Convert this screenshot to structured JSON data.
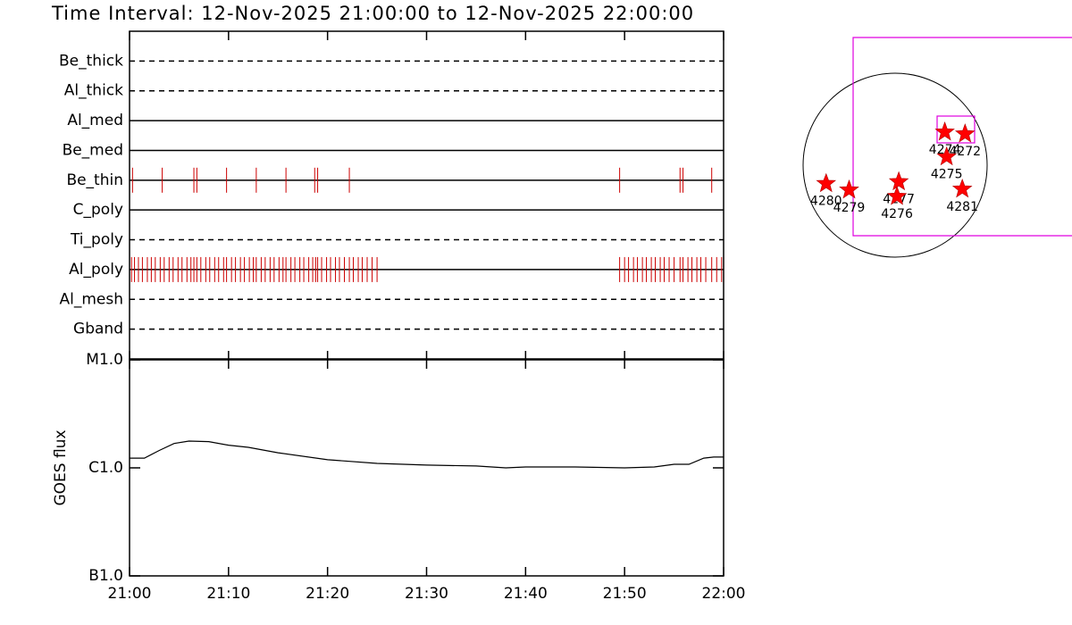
{
  "chart_data": [
    {
      "type": "timeline",
      "title": "Time Interval: 12-Nov-2025 21:00:00 to 12-Nov-2025 22:00:00",
      "categories": [
        "Be_thick",
        "Al_thick",
        "Al_med",
        "Be_med",
        "Be_thin",
        "C_poly",
        "Ti_poly",
        "Al_poly",
        "Al_mesh",
        "Gband"
      ],
      "line_styles": [
        "dashed",
        "dashed",
        "solid",
        "solid",
        "solid",
        "solid",
        "dashed",
        "solid",
        "dashed",
        "dashed"
      ],
      "events": [
        [],
        [],
        [],
        [],
        [
          0.3,
          3.3,
          6.5,
          6.8,
          9.8,
          12.8,
          15.8,
          18.7,
          19.0,
          22.2,
          49.5,
          55.6,
          55.9,
          58.8
        ],
        [],
        [],
        [
          0.2,
          0.5,
          0.9,
          1.3,
          1.8,
          2.2,
          2.6,
          3.1,
          3.5,
          4.0,
          4.4,
          4.9,
          5.3,
          5.8,
          6.2,
          6.5,
          6.8,
          7.2,
          7.7,
          8.1,
          8.6,
          9.0,
          9.5,
          9.8,
          10.3,
          10.7,
          11.2,
          11.6,
          12.1,
          12.5,
          12.8,
          13.3,
          13.7,
          14.2,
          14.6,
          15.1,
          15.5,
          15.8,
          16.3,
          16.7,
          17.2,
          17.6,
          18.1,
          18.5,
          18.8,
          19.0,
          19.4,
          19.9,
          20.3,
          20.8,
          21.2,
          21.7,
          22.2,
          22.6,
          23.1,
          23.5,
          24.0,
          24.5,
          25.0,
          49.5,
          50.0,
          50.4,
          50.9,
          51.3,
          51.8,
          52.2,
          52.7,
          53.1,
          53.6,
          54.0,
          54.5,
          55.0,
          55.6,
          55.9,
          56.4,
          56.8,
          57.3,
          57.7,
          58.2,
          58.8,
          59.3,
          59.8
        ],
        [],
        []
      ],
      "color": "#cc0000",
      "xlim": [
        0,
        60
      ]
    },
    {
      "type": "line",
      "ylabel": "GOES flux",
      "log_scale": true,
      "x": [
        0,
        1.5,
        3,
        4.5,
        6,
        8,
        10,
        12,
        15,
        20,
        25,
        30,
        35,
        38,
        40,
        45,
        50,
        53,
        55,
        56.5,
        58,
        59,
        60
      ],
      "values": [
        1.23e-06,
        1.23e-06,
        1.45e-06,
        1.68e-06,
        1.77e-06,
        1.75e-06,
        1.62e-06,
        1.55e-06,
        1.38e-06,
        1.19e-06,
        1.1e-06,
        1.06e-06,
        1.04e-06,
        1e-06,
        1.02e-06,
        1.02e-06,
        1e-06,
        1.02e-06,
        1.08e-06,
        1.08e-06,
        1.23e-06,
        1.26e-06,
        1.26e-06
      ],
      "color": "#000000",
      "xlim": [
        0,
        60
      ],
      "xticks": [
        {
          "value": 0,
          "label": "21:00"
        },
        {
          "value": 10,
          "label": "21:10"
        },
        {
          "value": 20,
          "label": "21:20"
        },
        {
          "value": 30,
          "label": "21:30"
        },
        {
          "value": 40,
          "label": "21:40"
        },
        {
          "value": 50,
          "label": "21:50"
        },
        {
          "value": 60,
          "label": "22:00"
        }
      ],
      "ylim": [
        1e-07,
        1e-05
      ],
      "yticks": [
        {
          "value": 1e-07,
          "label": "B1.0"
        },
        {
          "value": 1e-06,
          "label": "C1.0"
        },
        {
          "value": 1e-05,
          "label": "M1.0"
        }
      ]
    },
    {
      "type": "map",
      "color": "#ff0000",
      "markers": [
        {
          "label": "4274",
          "x": 0.54,
          "y": 0.36
        },
        {
          "label": "4272",
          "x": 0.76,
          "y": 0.34
        },
        {
          "label": "4275",
          "x": 0.56,
          "y": 0.09
        },
        {
          "label": "4280",
          "x": -0.75,
          "y": -0.2
        },
        {
          "label": "4279",
          "x": -0.5,
          "y": -0.27
        },
        {
          "label": "4277",
          "x": 0.04,
          "y": -0.18
        },
        {
          "label": "4276",
          "x": 0.02,
          "y": -0.34
        },
        {
          "label": "4281",
          "x": 0.73,
          "y": -0.26
        }
      ]
    }
  ]
}
